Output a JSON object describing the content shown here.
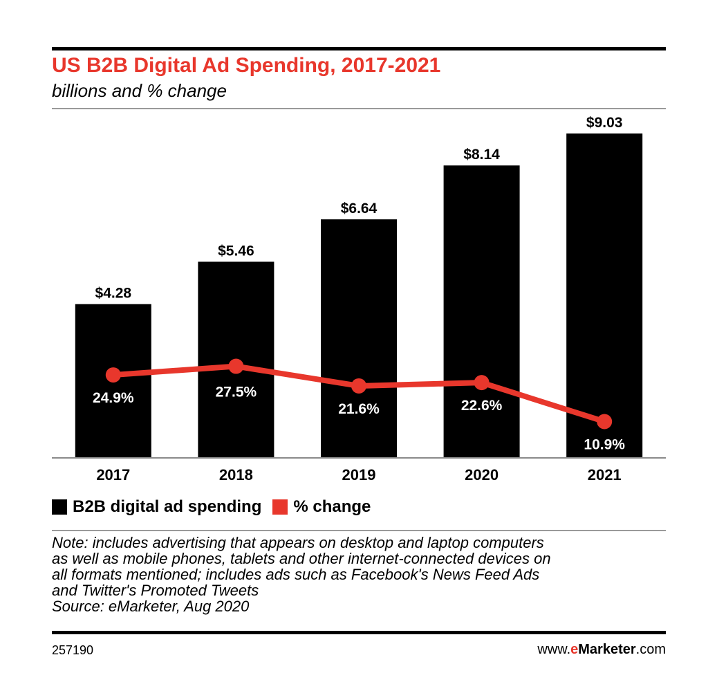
{
  "header": {
    "title": "US B2B Digital Ad Spending, 2017-2021",
    "subtitle": "billions and % change"
  },
  "colors": {
    "bar": "#000000",
    "line": "#e8372c",
    "title": "#e8372c",
    "bar_label": "#000000",
    "line_label": "#ffffff"
  },
  "chart_data": {
    "type": "bar",
    "title": "US B2B Digital Ad Spending, 2017-2021",
    "subtitle": "billions and % change",
    "categories": [
      "2017",
      "2018",
      "2019",
      "2020",
      "2021"
    ],
    "series": [
      {
        "name": "B2B digital ad spending",
        "type": "bar",
        "values": [
          4.28,
          5.46,
          6.64,
          8.14,
          9.03
        ],
        "labels": [
          "$4.28",
          "$5.46",
          "$6.64",
          "$8.14",
          "$9.03"
        ]
      },
      {
        "name": "% change",
        "type": "line",
        "values": [
          24.9,
          27.5,
          21.6,
          22.6,
          10.9
        ],
        "labels": [
          "24.9%",
          "27.5%",
          "21.6%",
          "22.6%",
          "10.9%"
        ]
      }
    ],
    "ylim": [
      0,
      9.03
    ],
    "grid": false,
    "legend_position": "bottom-left"
  },
  "legend": {
    "items": [
      {
        "label": "B2B digital ad spending",
        "color": "#000000"
      },
      {
        "label": "% change",
        "color": "#e8372c"
      }
    ]
  },
  "footer": {
    "note_lines": [
      "Note: includes advertising that appears on desktop and laptop computers",
      "as well as mobile phones, tablets and other internet-connected devices on",
      "all formats mentioned; includes ads such as Facebook's News Feed Ads",
      "and Twitter's Promoted Tweets",
      "Source: eMarketer, Aug 2020"
    ],
    "chart_id": "257190",
    "brand": {
      "prefix": "www.",
      "accent": "e",
      "name": "Marketer",
      "suffix": ".com"
    }
  }
}
